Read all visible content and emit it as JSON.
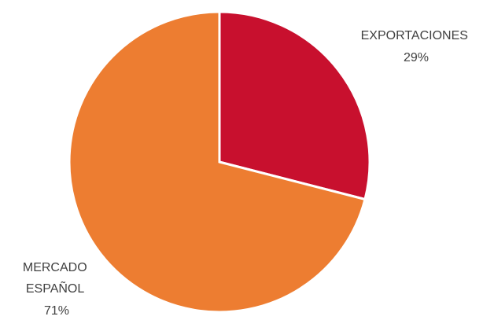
{
  "chart_data": {
    "type": "pie",
    "title": "",
    "start_angle_deg": 0,
    "direction": "clockwise",
    "slices": [
      {
        "label_lines": [
          "EXPORTACIONES"
        ],
        "percent_label": "29%",
        "value": 29,
        "color": "#c8102e"
      },
      {
        "label_lines": [
          "MERCADO",
          "ESPAÑOL"
        ],
        "percent_label": "71%",
        "value": 71,
        "color": "#ed7d31"
      }
    ]
  }
}
